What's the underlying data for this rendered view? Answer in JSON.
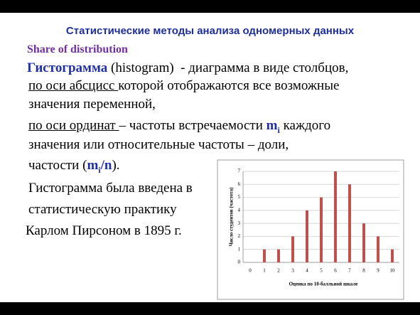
{
  "title": "Статистические методы анализа одномерных данных",
  "subtitle": "Share of distribution",
  "lines": [
    [
      "Гистограмма",
      " (histogram)  - диаграмма в виде столбцов,"
    ],
    [
      "по оси абсцисс ",
      "которой отображаются все возможные"
    ],
    [
      "значения переменной,"
    ],
    [
      "по оси ординат ",
      "– частоты встречаемости ",
      "m",
      "i",
      " каждого"
    ],
    [
      "значения или относительные частоты – доли,"
    ],
    [
      "частости (",
      "m",
      "i",
      "/n",
      ")."
    ],
    [
      "Гистограмма была введена в"
    ],
    [
      "статистическую практику"
    ],
    [
      "Карлом Пирсоном в 1895 г."
    ]
  ],
  "chart_data": {
    "type": "bar",
    "x_label": "Оценка по 10-балльной шкале",
    "y_label": "Число студентов (частота)",
    "categories": [
      "0",
      "1",
      "2",
      "3",
      "4",
      "5",
      "6",
      "7",
      "8",
      "9",
      "10"
    ],
    "values": [
      0,
      1,
      1,
      2,
      4,
      5,
      7,
      6,
      3,
      2,
      1
    ],
    "color": "#c0504d",
    "ylim": [
      0,
      7
    ],
    "yticks": [
      0,
      1,
      2,
      3,
      4,
      5,
      6,
      7
    ],
    "grid": true
  }
}
